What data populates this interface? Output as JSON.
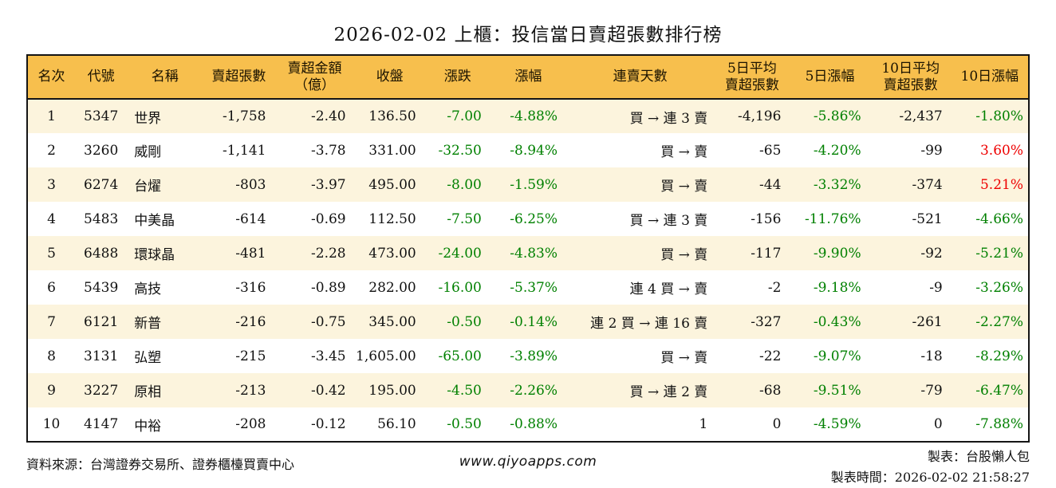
{
  "title": "2026-02-02 上櫃：投信當日賣超張數排行榜",
  "colors": {
    "green": "#008000",
    "red": "#ee0000",
    "header_bg": "#f7bf4d",
    "row_alt_bg": "#fcf4dd",
    "border": "#151515"
  },
  "table": {
    "columns": [
      "名次",
      "代號",
      "名稱",
      "賣超張數",
      "賣超金額\n（億）",
      "收盤",
      "漲跌",
      "漲幅",
      "連賣天數",
      "5日平均\n賣超張數",
      "5日漲幅",
      "10日平均\n賣超張數",
      "10日漲幅"
    ],
    "rows": [
      {
        "rank": "1",
        "code": "5347",
        "name": "世界",
        "vol": "-1,758",
        "amt": "-2.40",
        "close": "136.50",
        "chg": "-7.00",
        "chg_c": "green",
        "pct": "-4.88%",
        "pct_c": "green",
        "streak": "買 → 連 3 賣",
        "avg5": "-4,196",
        "pct5": "-5.86%",
        "pct5_c": "green",
        "avg10": "-2,437",
        "pct10": "-1.80%",
        "pct10_c": "green"
      },
      {
        "rank": "2",
        "code": "3260",
        "name": "威剛",
        "vol": "-1,141",
        "amt": "-3.78",
        "close": "331.00",
        "chg": "-32.50",
        "chg_c": "green",
        "pct": "-8.94%",
        "pct_c": "green",
        "streak": "買 → 賣",
        "avg5": "-65",
        "pct5": "-4.20%",
        "pct5_c": "green",
        "avg10": "-99",
        "pct10": "3.60%",
        "pct10_c": "red"
      },
      {
        "rank": "3",
        "code": "6274",
        "name": "台燿",
        "vol": "-803",
        "amt": "-3.97",
        "close": "495.00",
        "chg": "-8.00",
        "chg_c": "green",
        "pct": "-1.59%",
        "pct_c": "green",
        "streak": "買 → 賣",
        "avg5": "-44",
        "pct5": "-3.32%",
        "pct5_c": "green",
        "avg10": "-374",
        "pct10": "5.21%",
        "pct10_c": "red"
      },
      {
        "rank": "4",
        "code": "5483",
        "name": "中美晶",
        "vol": "-614",
        "amt": "-0.69",
        "close": "112.50",
        "chg": "-7.50",
        "chg_c": "green",
        "pct": "-6.25%",
        "pct_c": "green",
        "streak": "買 → 連 3 賣",
        "avg5": "-156",
        "pct5": "-11.76%",
        "pct5_c": "green",
        "avg10": "-521",
        "pct10": "-4.66%",
        "pct10_c": "green"
      },
      {
        "rank": "5",
        "code": "6488",
        "name": "環球晶",
        "vol": "-481",
        "amt": "-2.28",
        "close": "473.00",
        "chg": "-24.00",
        "chg_c": "green",
        "pct": "-4.83%",
        "pct_c": "green",
        "streak": "買 → 賣",
        "avg5": "-117",
        "pct5": "-9.90%",
        "pct5_c": "green",
        "avg10": "-92",
        "pct10": "-5.21%",
        "pct10_c": "green"
      },
      {
        "rank": "6",
        "code": "5439",
        "name": "高技",
        "vol": "-316",
        "amt": "-0.89",
        "close": "282.00",
        "chg": "-16.00",
        "chg_c": "green",
        "pct": "-5.37%",
        "pct_c": "green",
        "streak": "連 4 買 → 賣",
        "avg5": "-2",
        "pct5": "-9.18%",
        "pct5_c": "green",
        "avg10": "-9",
        "pct10": "-3.26%",
        "pct10_c": "green"
      },
      {
        "rank": "7",
        "code": "6121",
        "name": "新普",
        "vol": "-216",
        "amt": "-0.75",
        "close": "345.00",
        "chg": "-0.50",
        "chg_c": "green",
        "pct": "-0.14%",
        "pct_c": "green",
        "streak": "連 2 買 → 連 16 賣",
        "avg5": "-327",
        "pct5": "-0.43%",
        "pct5_c": "green",
        "avg10": "-261",
        "pct10": "-2.27%",
        "pct10_c": "green"
      },
      {
        "rank": "8",
        "code": "3131",
        "name": "弘塑",
        "vol": "-215",
        "amt": "-3.45",
        "close": "1,605.00",
        "chg": "-65.00",
        "chg_c": "green",
        "pct": "-3.89%",
        "pct_c": "green",
        "streak": "買 → 賣",
        "avg5": "-22",
        "pct5": "-9.07%",
        "pct5_c": "green",
        "avg10": "-18",
        "pct10": "-8.29%",
        "pct10_c": "green"
      },
      {
        "rank": "9",
        "code": "3227",
        "name": "原相",
        "vol": "-213",
        "amt": "-0.42",
        "close": "195.00",
        "chg": "-4.50",
        "chg_c": "green",
        "pct": "-2.26%",
        "pct_c": "green",
        "streak": "買 → 連 2 賣",
        "avg5": "-68",
        "pct5": "-9.51%",
        "pct5_c": "green",
        "avg10": "-79",
        "pct10": "-6.47%",
        "pct10_c": "green"
      },
      {
        "rank": "10",
        "code": "4147",
        "name": "中裕",
        "vol": "-208",
        "amt": "-0.12",
        "close": "56.10",
        "chg": "-0.50",
        "chg_c": "green",
        "pct": "-0.88%",
        "pct_c": "green",
        "streak": "1",
        "avg5": "0",
        "pct5": "-4.59%",
        "pct5_c": "green",
        "avg10": "0",
        "pct10": "-7.88%",
        "pct10_c": "green"
      }
    ]
  },
  "footer": {
    "source": "資料來源：台灣證券交易所、證券櫃檯買賣中心",
    "url": "www.qiyoapps.com",
    "maker": "製表：台股懶人包",
    "time": "製表時間：2026-02-02 21:58:27"
  }
}
